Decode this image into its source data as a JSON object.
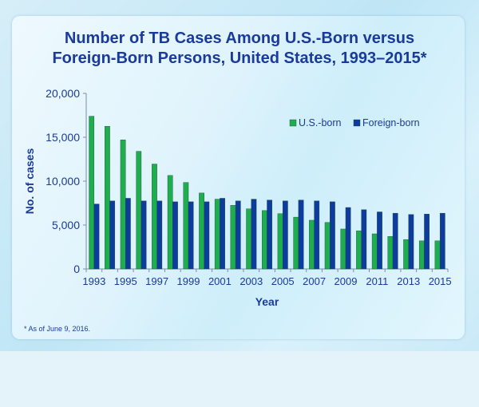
{
  "chart_data": {
    "type": "bar",
    "title_line1": "Number of TB Cases Among U.S.-Born versus",
    "title_line2": "Foreign-Born Persons, United States, 1993–2015*",
    "xlabel": "Year",
    "ylabel": "No. of cases",
    "ylim": [
      0,
      20000
    ],
    "yticks": [
      "0",
      "5,000",
      "10,000",
      "15,000",
      "20,000"
    ],
    "ytick_values": [
      0,
      5000,
      10000,
      15000,
      20000
    ],
    "categories": [
      "1993",
      "1994",
      "1995",
      "1996",
      "1997",
      "1998",
      "1999",
      "2000",
      "2001",
      "2002",
      "2003",
      "2004",
      "2005",
      "2006",
      "2007",
      "2008",
      "2009",
      "2010",
      "2011",
      "2012",
      "2013",
      "2014",
      "2015"
    ],
    "xtick_labels_shown": [
      "1993",
      "1995",
      "1997",
      "1999",
      "2001",
      "2003",
      "2005",
      "2007",
      "2009",
      "2011",
      "2013",
      "2015"
    ],
    "series": [
      {
        "name": "U.S.-born",
        "color": "#1fae4f",
        "values": [
          17400,
          16250,
          14700,
          13400,
          11950,
          10650,
          9850,
          8650,
          7950,
          7250,
          6850,
          6650,
          6300,
          5900,
          5550,
          5300,
          4550,
          4350,
          4000,
          3700,
          3350,
          3200,
          3200
        ]
      },
      {
        "name": "Foreign-born",
        "color": "#0d3b9e",
        "values": [
          7400,
          7750,
          8050,
          7750,
          7750,
          7650,
          7650,
          7650,
          8050,
          7750,
          7950,
          7850,
          7750,
          7850,
          7750,
          7650,
          7000,
          6750,
          6500,
          6350,
          6200,
          6250,
          6350
        ]
      }
    ],
    "legend_position": "top-right",
    "grid": false,
    "footnote": "* As of June 9, 2016."
  }
}
